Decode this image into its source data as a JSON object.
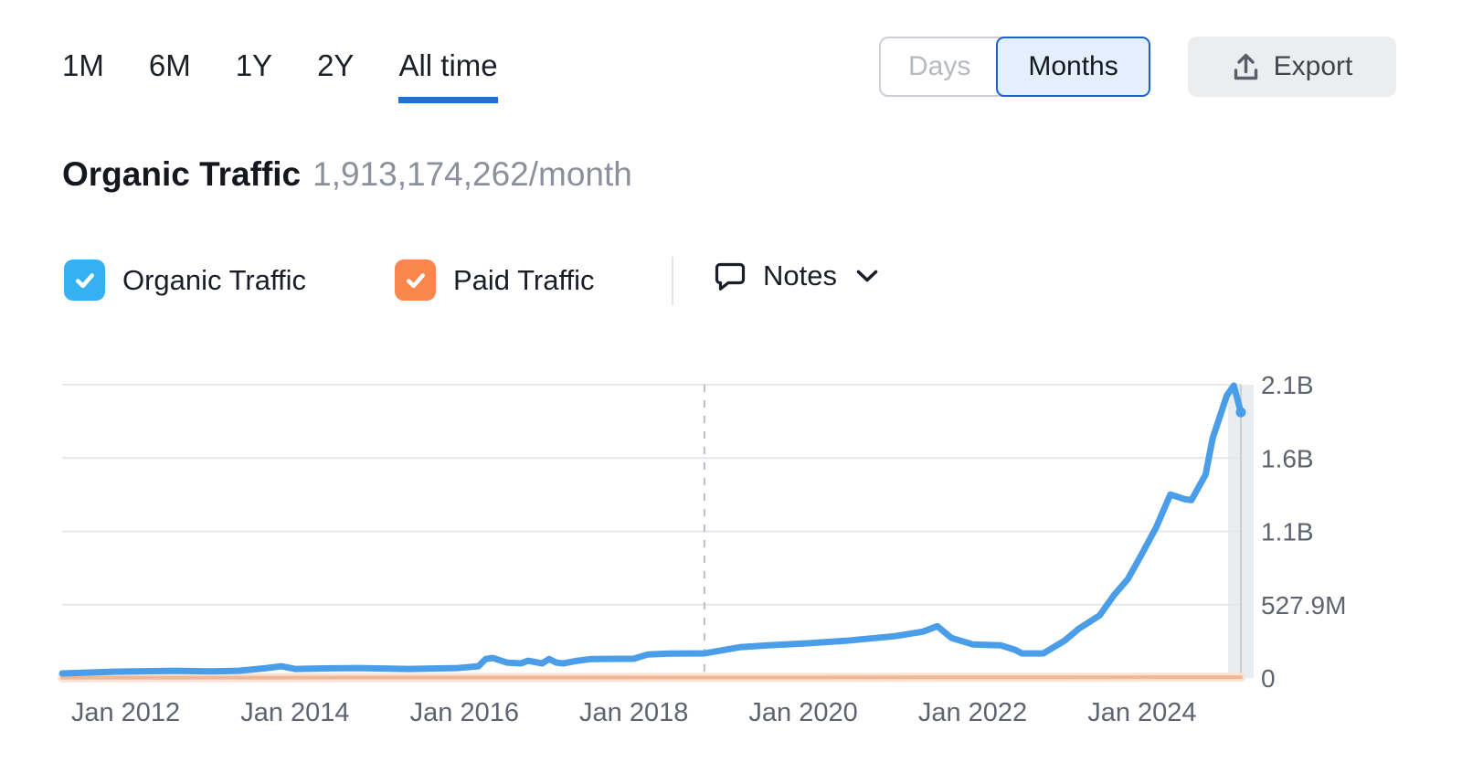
{
  "time_range_tabs": {
    "items": [
      {
        "label": "1M",
        "active": false
      },
      {
        "label": "6M",
        "active": false
      },
      {
        "label": "1Y",
        "active": false
      },
      {
        "label": "2Y",
        "active": false
      },
      {
        "label": "All time",
        "active": true
      }
    ],
    "active_underline_color": "#1f6fd8"
  },
  "view_toggle": {
    "options": [
      {
        "label": "Days",
        "active": false
      },
      {
        "label": "Months",
        "active": true
      }
    ],
    "active_bg": "#e3effc",
    "active_border": "#2061c6"
  },
  "export_button": {
    "label": "Export",
    "icon": "upload-icon"
  },
  "title": {
    "metric": "Organic Traffic",
    "value": "1,913,174,262/month"
  },
  "legend": {
    "items": [
      {
        "label": "Organic Traffic",
        "checked": true,
        "color": "#35b1f1"
      },
      {
        "label": "Paid Traffic",
        "checked": true,
        "color": "#f8864d"
      }
    ]
  },
  "notes": {
    "label": "Notes",
    "icon": "comment-icon",
    "chevron": "chevron-down-icon"
  },
  "chart_data": {
    "type": "line",
    "title": "Organic Traffic 1,913,174,262/month",
    "unit": "visits per month",
    "x_start": "Apr 2011",
    "x_end": "Mar 2025",
    "x_axis": {
      "tick_labels": [
        "Jan 2012",
        "Jan 2014",
        "Jan 2016",
        "Jan 2018",
        "Jan 2020",
        "Jan 2022",
        "Jan 2024"
      ]
    },
    "y_axis": {
      "tick_labels": [
        "0",
        "527.9M",
        "1.1B",
        "1.6B",
        "2.1B"
      ],
      "tick_values_millions": [
        0,
        527.9,
        1055.8,
        1583.7,
        2111.6
      ],
      "max_millions": 2111.6
    },
    "grid": "horizontal",
    "legend_position": "above-chart-left",
    "marker_line_date": "Nov 2018",
    "marker_line_style": "dashed-vertical",
    "highlight_last_point": true,
    "series": [
      {
        "name": "Organic Traffic",
        "color": "#4a9de8",
        "points": [
          [
            "Apr 2011",
            33
          ],
          [
            "Dec 2011",
            46
          ],
          [
            "Aug 2012",
            52
          ],
          [
            "Jan 2013",
            48
          ],
          [
            "May 2013",
            52
          ],
          [
            "Sep 2013",
            72
          ],
          [
            "Nov 2013",
            85
          ],
          [
            "Jan 2014",
            65
          ],
          [
            "Jun 2014",
            70
          ],
          [
            "Oct 2014",
            72
          ],
          [
            "May 2015",
            65
          ],
          [
            "Dec 2015",
            72
          ],
          [
            "Mar 2016",
            85
          ],
          [
            "Apr 2016",
            137
          ],
          [
            "May 2016",
            144
          ],
          [
            "Jul 2016",
            111
          ],
          [
            "Sep 2016",
            105
          ],
          [
            "Oct 2016",
            124
          ],
          [
            "Dec 2016",
            105
          ],
          [
            "Jan 2017",
            137
          ],
          [
            "Feb 2017",
            111
          ],
          [
            "Mar 2017",
            105
          ],
          [
            "May 2017",
            124
          ],
          [
            "Jul 2017",
            137
          ],
          [
            "Jan 2018",
            139
          ],
          [
            "Mar 2018",
            170
          ],
          [
            "Jun 2018",
            176
          ],
          [
            "Nov 2018",
            177
          ],
          [
            "Apr 2019",
            222
          ],
          [
            "Aug 2019",
            235
          ],
          [
            "Jan 2020",
            248
          ],
          [
            "Jul 2020",
            268
          ],
          [
            "Feb 2021",
            301
          ],
          [
            "Jun 2021",
            334
          ],
          [
            "Aug 2021",
            373
          ],
          [
            "Oct 2021",
            288
          ],
          [
            "Jan 2022",
            242
          ],
          [
            "May 2022",
            235
          ],
          [
            "Jul 2022",
            203
          ],
          [
            "Aug 2022",
            177
          ],
          [
            "Nov 2022",
            177
          ],
          [
            "Feb 2023",
            268
          ],
          [
            "Apr 2023",
            353
          ],
          [
            "Jul 2023",
            451
          ],
          [
            "Sep 2023",
            595
          ],
          [
            "Nov 2023",
            713
          ],
          [
            "Jan 2024",
            896
          ],
          [
            "Mar 2024",
            1085
          ],
          [
            "May 2024",
            1321
          ],
          [
            "Jul 2024",
            1288
          ],
          [
            "Aug 2024",
            1281
          ],
          [
            "Oct 2024",
            1464
          ],
          [
            "Nov 2024",
            1726
          ],
          [
            "Jan 2025",
            2033
          ],
          [
            "Feb 2025",
            2105
          ],
          [
            "Mar 2025",
            1913
          ]
        ]
      },
      {
        "name": "Paid Traffic",
        "color": "#f0b794",
        "points": [
          [
            "Apr 2011",
            2
          ],
          [
            "Jan 2015",
            3
          ],
          [
            "Jan 2020",
            4
          ],
          [
            "Jan 2023",
            5
          ],
          [
            "Mar 2025",
            6
          ]
        ]
      }
    ]
  }
}
